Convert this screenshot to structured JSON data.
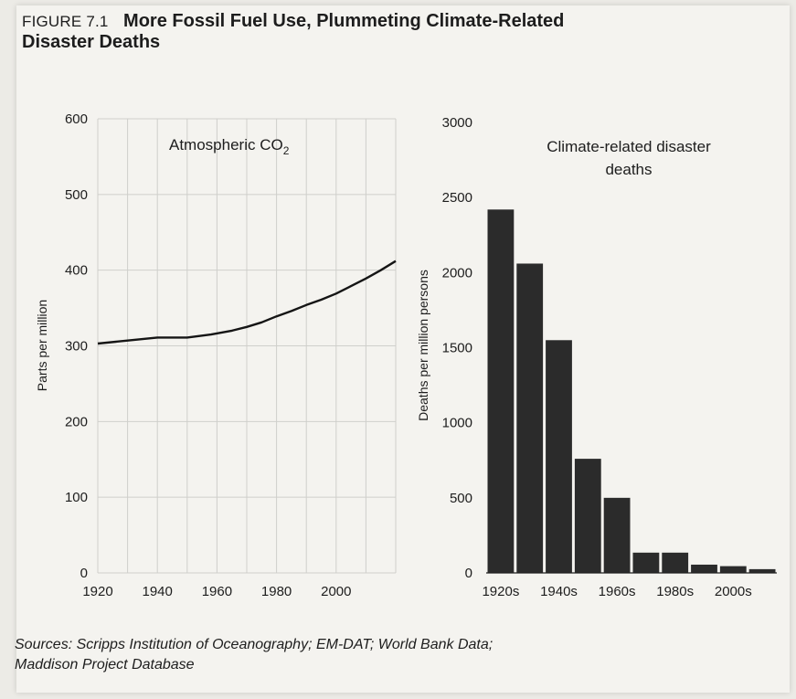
{
  "figure": {
    "label": "FIGURE 7.1",
    "title_line1": "More Fossil Fuel Use, Plummeting Climate-Related",
    "title_line2": "Disaster Deaths"
  },
  "sources": {
    "line1": "Sources: Scripps Institution of Oceanography; EM-DAT; World Bank Data;",
    "line2": "Maddison Project Database"
  },
  "colors": {
    "line": "#151515",
    "bar": "#2b2b2b",
    "grid": "#cfcfcb",
    "axis": "#222222"
  },
  "chart_data": [
    {
      "type": "line",
      "title": "Atmospheric CO",
      "title_sub": "2",
      "xlabel": "",
      "ylabel": "Parts per million",
      "xlim": [
        1920,
        2020
      ],
      "ylim": [
        0,
        600
      ],
      "xticks": [
        1920,
        1940,
        1960,
        1980,
        2000
      ],
      "yticks": [
        0,
        100,
        200,
        300,
        400,
        500,
        600
      ],
      "grid": true,
      "x": [
        1920,
        1930,
        1940,
        1950,
        1958,
        1965,
        1970,
        1975,
        1980,
        1985,
        1990,
        1995,
        2000,
        2005,
        2010,
        2015,
        2020
      ],
      "values": [
        303,
        307,
        311,
        311,
        315,
        320,
        325,
        331,
        339,
        346,
        354,
        361,
        369,
        379,
        389,
        400,
        412
      ]
    },
    {
      "type": "bar",
      "title": "Climate-related disaster deaths",
      "title_line1": "Climate-related disaster",
      "title_line2": "deaths",
      "xlabel": "",
      "ylabel": "Deaths per million persons",
      "ylim": [
        0,
        3000
      ],
      "yticks": [
        0,
        500,
        1000,
        1500,
        2000,
        2500,
        3000
      ],
      "categories": [
        "1920s",
        "1930s",
        "1940s",
        "1950s",
        "1960s",
        "1970s",
        "1980s",
        "1990s",
        "2000s",
        "2010s"
      ],
      "tick_labels": [
        "1920s",
        "1940s",
        "1960s",
        "1980s",
        "2000s"
      ],
      "values": [
        2420,
        2060,
        1550,
        760,
        500,
        135,
        135,
        55,
        45,
        25
      ],
      "grid": false
    }
  ]
}
